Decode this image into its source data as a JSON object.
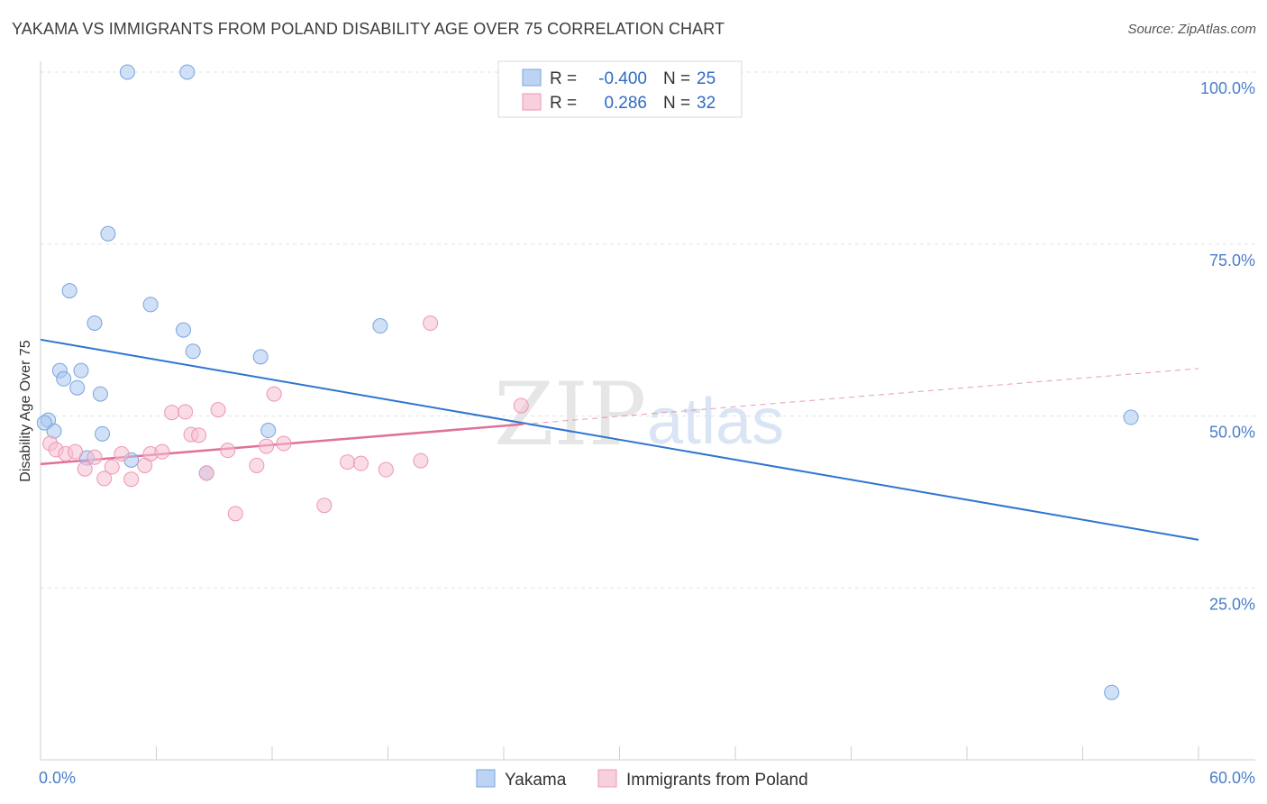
{
  "title": "YAKAMA VS IMMIGRANTS FROM POLAND DISABILITY AGE OVER 75 CORRELATION CHART",
  "source": "Source: ZipAtlas.com",
  "watermark": {
    "zip": "ZIP",
    "atlas": "atlas"
  },
  "chart_data": {
    "type": "scatter",
    "ylabel": "Disability Age Over 75",
    "xlim": [
      0,
      60
    ],
    "ylim": [
      0,
      105
    ],
    "x_tick_labels": [
      "0.0%",
      "60.0%"
    ],
    "y_ticks": [
      25,
      50,
      75,
      100
    ],
    "y_tick_labels": [
      "25.0%",
      "50.0%",
      "75.0%",
      "100.0%"
    ],
    "grid": true,
    "legend": {
      "position": "top-center",
      "entries": [
        {
          "r_label": "R =",
          "r_value": "-0.400",
          "n_label": "N =",
          "n_value": "25"
        },
        {
          "r_label": "R =",
          "r_value": "0.286",
          "n_label": "N =",
          "n_value": "32"
        }
      ]
    },
    "series": [
      {
        "name": "Yakama",
        "color": "#a9c6ee",
        "stroke": "#7aa5dc",
        "line_color": "#2f74d0",
        "trend": {
          "x0": 0,
          "y0": 61.1,
          "x1": 60,
          "y1": 32.0,
          "dashed_from": null
        },
        "points": [
          [
            4.5,
            100
          ],
          [
            7.6,
            100
          ],
          [
            3.5,
            76.5
          ],
          [
            1.5,
            68.2
          ],
          [
            5.7,
            66.2
          ],
          [
            2.8,
            63.5
          ],
          [
            7.4,
            62.5
          ],
          [
            17.6,
            63.1
          ],
          [
            7.9,
            59.4
          ],
          [
            11.4,
            58.6
          ],
          [
            1.0,
            56.6
          ],
          [
            2.1,
            56.6
          ],
          [
            1.2,
            55.4
          ],
          [
            1.9,
            54.1
          ],
          [
            3.1,
            53.2
          ],
          [
            0.4,
            49.4
          ],
          [
            0.7,
            47.8
          ],
          [
            3.2,
            47.4
          ],
          [
            11.8,
            47.9
          ],
          [
            2.4,
            43.9
          ],
          [
            4.7,
            43.6
          ],
          [
            8.6,
            41.7
          ],
          [
            56.5,
            49.8
          ],
          [
            55.5,
            9.8
          ],
          [
            0.2,
            49.0
          ]
        ]
      },
      {
        "name": "Immigrants from Poland",
        "color": "#f6bfd2",
        "stroke": "#ec97b4",
        "line_color": "#e0709a",
        "trend": {
          "x0": 0,
          "y0": 43.0,
          "x1": 25,
          "y1": 48.8,
          "dashed_to_x": 60,
          "dashed_to_y": 56.9
        },
        "points": [
          [
            20.2,
            63.5
          ],
          [
            24.9,
            51.5
          ],
          [
            12.1,
            53.2
          ],
          [
            9.2,
            50.9
          ],
          [
            6.8,
            50.5
          ],
          [
            7.5,
            50.6
          ],
          [
            7.8,
            47.3
          ],
          [
            8.2,
            47.2
          ],
          [
            12.6,
            46.0
          ],
          [
            11.7,
            45.6
          ],
          [
            0.5,
            46.0
          ],
          [
            0.8,
            45.1
          ],
          [
            1.3,
            44.5
          ],
          [
            1.8,
            44.8
          ],
          [
            2.8,
            44.0
          ],
          [
            4.2,
            44.5
          ],
          [
            5.7,
            44.5
          ],
          [
            6.3,
            44.8
          ],
          [
            9.7,
            45.0
          ],
          [
            19.7,
            43.5
          ],
          [
            15.9,
            43.3
          ],
          [
            16.6,
            43.1
          ],
          [
            11.2,
            42.8
          ],
          [
            5.4,
            42.8
          ],
          [
            2.3,
            42.3
          ],
          [
            3.7,
            42.6
          ],
          [
            17.9,
            42.2
          ],
          [
            3.3,
            40.9
          ],
          [
            4.7,
            40.8
          ],
          [
            8.6,
            41.7
          ],
          [
            10.1,
            35.8
          ],
          [
            14.7,
            37.0
          ]
        ]
      }
    ]
  }
}
